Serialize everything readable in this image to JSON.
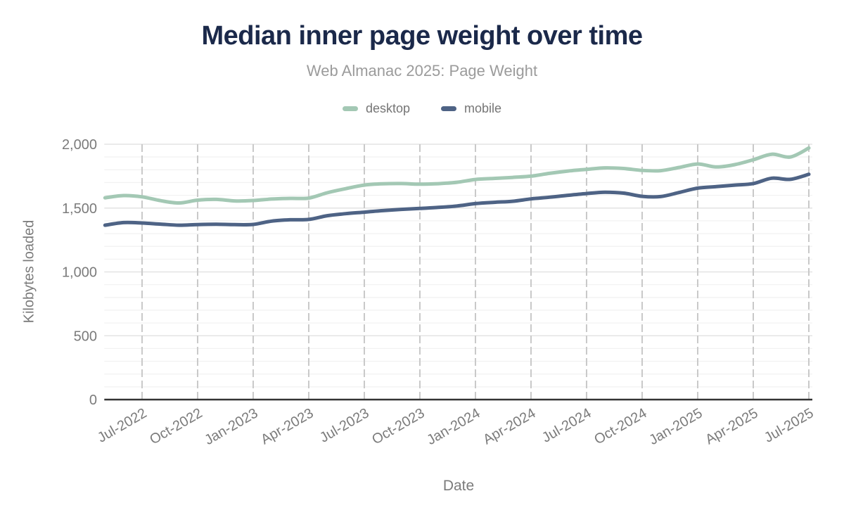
{
  "chart_data": {
    "type": "line",
    "title": "Median inner page weight over time",
    "subtitle": "Web Almanac 2025: Page Weight",
    "xlabel": "Date",
    "ylabel": "Kilobytes loaded",
    "unit": "KB",
    "ylim": [
      0,
      2000
    ],
    "y_ticks": [
      0,
      500,
      1000,
      1500,
      2000
    ],
    "y_tick_labels": [
      "0",
      "500",
      "1,000",
      "1,500",
      "2,000"
    ],
    "x_tick_labels": [
      "Jul-2022",
      "Oct-2022",
      "Jan-2023",
      "Apr-2023",
      "Jul-2023",
      "Oct-2023",
      "Jan-2024",
      "Apr-2024",
      "Jul-2024",
      "Oct-2024",
      "Jan-2025",
      "Apr-2025",
      "Jul-2025"
    ],
    "x_tick_every_n_months": 3,
    "x_first_tick_month_index": 2,
    "x_label_rotation_deg": -30,
    "x_months": [
      "May-2022",
      "Jun-2022",
      "Jul-2022",
      "Aug-2022",
      "Sep-2022",
      "Oct-2022",
      "Nov-2022",
      "Dec-2022",
      "Jan-2023",
      "Feb-2023",
      "Mar-2023",
      "Apr-2023",
      "May-2023",
      "Jun-2023",
      "Jul-2023",
      "Aug-2023",
      "Sep-2023",
      "Oct-2023",
      "Nov-2023",
      "Dec-2023",
      "Jan-2024",
      "Feb-2024",
      "Mar-2024",
      "Apr-2024",
      "May-2024",
      "Jun-2024",
      "Jul-2024",
      "Aug-2024",
      "Sep-2024",
      "Oct-2024",
      "Nov-2024",
      "Dec-2024",
      "Jan-2025",
      "Feb-2025",
      "Mar-2025",
      "Apr-2025",
      "May-2025",
      "Jun-2025",
      "Jul-2025"
    ],
    "series": [
      {
        "name": "desktop",
        "color": "#a3c8b4",
        "values": [
          1580,
          1598,
          1588,
          1558,
          1540,
          1562,
          1568,
          1556,
          1559,
          1571,
          1576,
          1578,
          1620,
          1652,
          1680,
          1690,
          1692,
          1687,
          1691,
          1702,
          1724,
          1732,
          1740,
          1750,
          1772,
          1790,
          1803,
          1815,
          1810,
          1795,
          1793,
          1818,
          1845,
          1822,
          1840,
          1878,
          1922,
          1900,
          1970
        ]
      },
      {
        "name": "mobile",
        "color": "#4e6385",
        "values": [
          1366,
          1386,
          1383,
          1374,
          1366,
          1371,
          1373,
          1370,
          1372,
          1398,
          1408,
          1411,
          1440,
          1456,
          1468,
          1480,
          1490,
          1497,
          1505,
          1516,
          1535,
          1545,
          1553,
          1572,
          1585,
          1600,
          1614,
          1624,
          1617,
          1592,
          1590,
          1622,
          1656,
          1668,
          1680,
          1692,
          1734,
          1725,
          1765
        ]
      }
    ],
    "legend": {
      "position": "top",
      "entries": [
        "desktop",
        "mobile"
      ]
    },
    "grid": {
      "vertical_style": "dashed",
      "horizontal_minor_step": 100,
      "horizontal_major_step": 500
    },
    "colors": {
      "title": "#1b294a",
      "subtitle": "#9b9b9b",
      "axis_text": "#7b7b7b",
      "tick_text": "#7b7b7b",
      "baseline": "#333333",
      "vgrid": "#c9c9c9",
      "hgrid_minor": "#f2f2f2",
      "hgrid_major": "#e3e3e3",
      "background": "#ffffff"
    }
  }
}
